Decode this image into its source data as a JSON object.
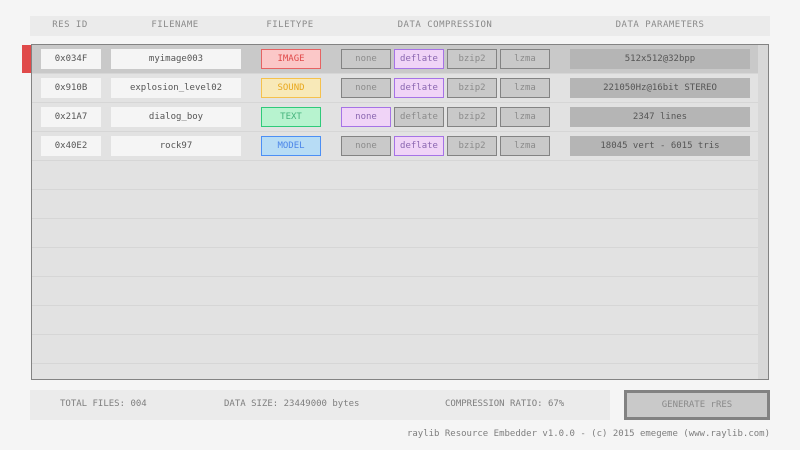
{
  "columns": [
    "RES ID",
    "FILENAME",
    "FILETYPE",
    "DATA COMPRESSION",
    "DATA PARAMETERS"
  ],
  "compression_options": [
    "none",
    "deflate",
    "bzip2",
    "lzma"
  ],
  "rows": [
    {
      "id": "0x034F",
      "filename": "myimage003",
      "type": "IMAGE",
      "compression": "deflate",
      "params": "512x512@32bpp",
      "selected": true
    },
    {
      "id": "0x910B",
      "filename": "explosion_level02",
      "type": "SOUND",
      "compression": "deflate",
      "params": "221050Hz@16bit STEREO"
    },
    {
      "id": "0x21A7",
      "filename": "dialog_boy",
      "type": "TEXT",
      "compression": "none",
      "params": "2347 lines"
    },
    {
      "id": "0x40E2",
      "filename": "rock97",
      "type": "MODEL",
      "compression": "deflate",
      "params": "18045 vert - 6015 tris"
    }
  ],
  "type_colors": {
    "IMAGE": {
      "border": "#e66363",
      "bg": "#fbc8c8",
      "text": "#e04a4a"
    },
    "SOUND": {
      "border": "#f5c14d",
      "bg": "#f8e9b8",
      "text": "#e8a81e"
    },
    "TEXT": {
      "border": "#2fca7a",
      "bg": "#b7f3cf",
      "text": "#45b37c"
    },
    "MODEL": {
      "border": "#4c8ff5",
      "bg": "#b7dcf5",
      "text": "#4c86e8"
    }
  },
  "footer": {
    "total_files": "TOTAL FILES: 004",
    "data_size": "DATA SIZE: 23449000 bytes",
    "ratio": "COMPRESSION RATIO: 67%",
    "generate": "GENERATE rRES"
  },
  "credit": "raylib Resource Embedder v1.0.0 - (c) 2015 emegeme (www.raylib.com)"
}
